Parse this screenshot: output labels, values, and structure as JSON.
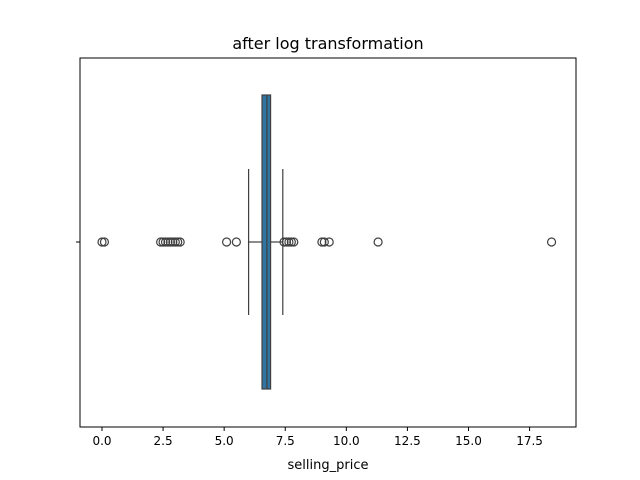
{
  "chart_data": {
    "type": "box",
    "orientation": "horizontal",
    "title": "after log transformation",
    "xlabel": "selling_price",
    "ylabel": "",
    "xlim": [
      -0.9,
      19.4
    ],
    "xticks": [
      0.0,
      2.5,
      5.0,
      7.5,
      10.0,
      12.5,
      15.0,
      17.5
    ],
    "xtick_labels": [
      "0.0",
      "2.5",
      "5.0",
      "7.5",
      "10.0",
      "12.5",
      "15.0",
      "17.5"
    ],
    "grid": false,
    "legend": "none",
    "box_color": "#3274a1",
    "series": [
      {
        "q1": 6.55,
        "median": 6.75,
        "q3": 6.9,
        "whisker_low": 6.0,
        "whisker_high": 7.4,
        "outliers": [
          0.0,
          0.1,
          2.4,
          2.5,
          2.6,
          2.7,
          2.8,
          2.9,
          3.0,
          3.1,
          3.2,
          5.1,
          5.5,
          7.45,
          7.55,
          7.65,
          7.75,
          7.85,
          9.0,
          9.1,
          9.3,
          11.3,
          18.4
        ]
      }
    ]
  }
}
